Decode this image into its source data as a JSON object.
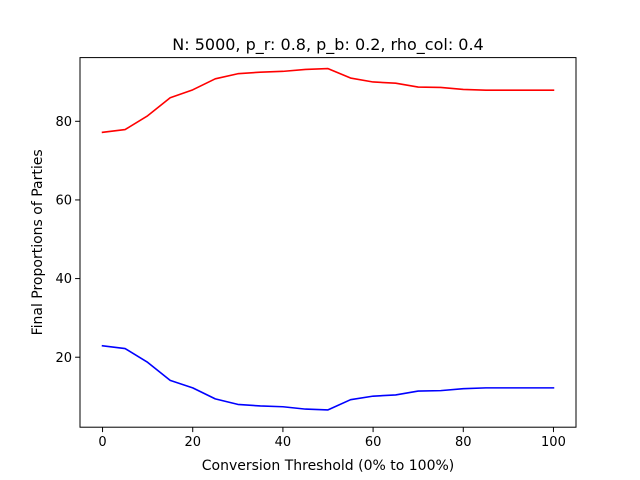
{
  "chart_data": {
    "type": "line",
    "title": "N: 5000, p_r: 0.8, p_b: 0.2, rho_col: 0.4",
    "xlabel": "Conversion Threshold (0% to 100%)",
    "ylabel": "Final Proportions of Parties",
    "xlim": [
      -5,
      105
    ],
    "ylim": [
      2.2,
      96.2
    ],
    "xticks": [
      0,
      20,
      40,
      60,
      80,
      100
    ],
    "yticks": [
      20,
      40,
      60,
      80
    ],
    "grid": false,
    "x": [
      0,
      5,
      10,
      15,
      20,
      25,
      30,
      35,
      40,
      45,
      50,
      55,
      60,
      65,
      70,
      75,
      80,
      85,
      90,
      95,
      100
    ],
    "series": [
      {
        "color": "#ff0000",
        "values": [
          77.2,
          77.9,
          81.4,
          86.0,
          88.0,
          90.8,
          92.1,
          92.5,
          92.7,
          93.2,
          93.4,
          91.0,
          90.0,
          89.7,
          88.7,
          88.6,
          88.1,
          87.9,
          87.9,
          87.9,
          87.9
        ]
      },
      {
        "color": "#0000ff",
        "values": [
          22.9,
          22.2,
          18.7,
          14.1,
          12.2,
          9.4,
          8.0,
          7.6,
          7.4,
          6.8,
          6.6,
          9.2,
          10.1,
          10.4,
          11.4,
          11.5,
          12.0,
          12.2,
          12.2,
          12.2,
          12.2
        ]
      }
    ]
  }
}
